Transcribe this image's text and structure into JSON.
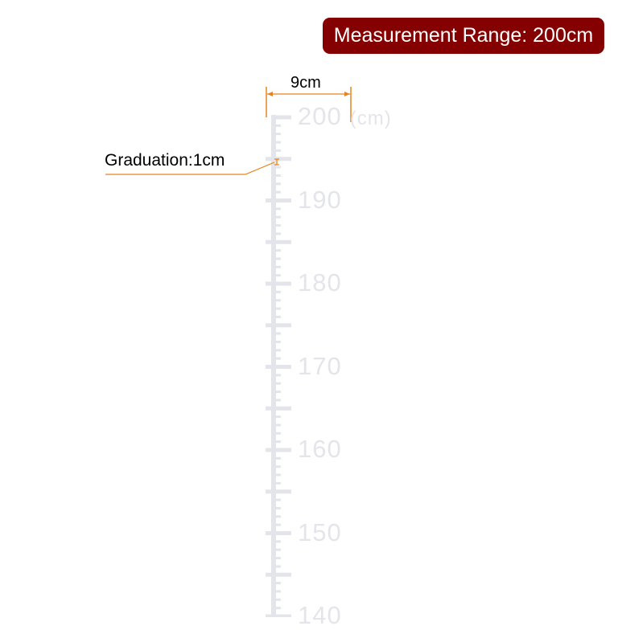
{
  "badge": {
    "text": "Measurement Range: 200cm",
    "color": "#850000"
  },
  "annotations": {
    "width": "9cm",
    "graduation": "Graduation:1cm",
    "color": "#e8821e"
  },
  "ruler": {
    "max": 200,
    "min_visible": 140,
    "unit": "(cm)",
    "labels": [
      "200",
      "190",
      "180",
      "170",
      "160",
      "150",
      "140"
    ],
    "color": "#e4e5eb"
  }
}
